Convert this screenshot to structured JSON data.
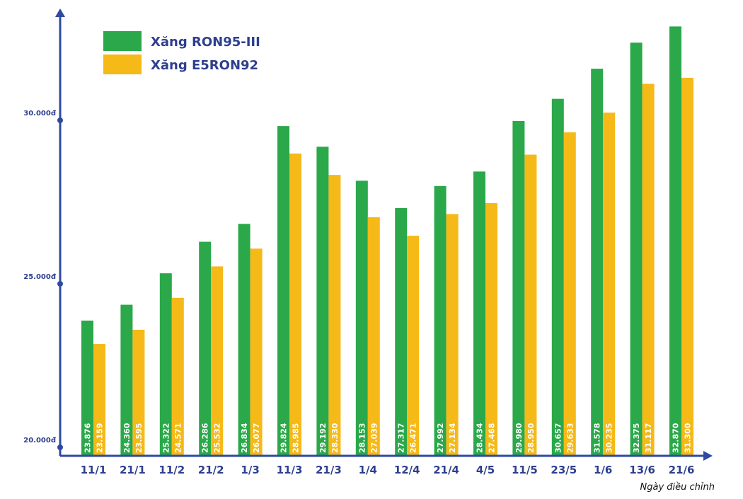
{
  "chart_data": {
    "type": "bar",
    "xlabel": "Ngày điều chỉnh",
    "ylabel": "",
    "ylim": [
      20000,
      32870
    ],
    "yticks": [
      {
        "value": 20000,
        "label": "20.000đ"
      },
      {
        "value": 25000,
        "label": "25.000đ"
      },
      {
        "value": 30000,
        "label": "30.000đ"
      }
    ],
    "legend_position": "top-left",
    "categories": [
      "11/1",
      "21/1",
      "11/2",
      "21/2",
      "1/3",
      "11/3",
      "21/3",
      "1/4",
      "12/4",
      "21/4",
      "4/5",
      "11/5",
      "23/5",
      "1/6",
      "13/6",
      "21/6"
    ],
    "series": [
      {
        "name": "Xăng RON95-III",
        "color": "#2aa84a",
        "values": [
          23876,
          24360,
          25322,
          26286,
          26834,
          29824,
          29192,
          28153,
          27317,
          27992,
          28434,
          29980,
          30657,
          31578,
          32375,
          32870
        ],
        "labels": [
          "23.876",
          "24.360",
          "25.322",
          "26.286",
          "26.834",
          "29.824",
          "29.192",
          "28.153",
          "27.317",
          "27.992",
          "28.434",
          "29.980",
          "30.657",
          "31.578",
          "32.375",
          "32.870"
        ]
      },
      {
        "name": "Xăng E5RON92",
        "color": "#f5b918",
        "values": [
          23159,
          23595,
          24571,
          25532,
          26077,
          28985,
          28330,
          27039,
          26471,
          27134,
          27468,
          28950,
          29633,
          30235,
          31117,
          31300
        ],
        "labels": [
          "23.159",
          "23.595",
          "24.571",
          "25.532",
          "26.077",
          "28.985",
          "28.330",
          "27.039",
          "26.471",
          "27.134",
          "27.468",
          "28.950",
          "29.633",
          "30.235",
          "31.117",
          "31.300"
        ]
      }
    ],
    "axis_color": "#2e4aa0"
  }
}
